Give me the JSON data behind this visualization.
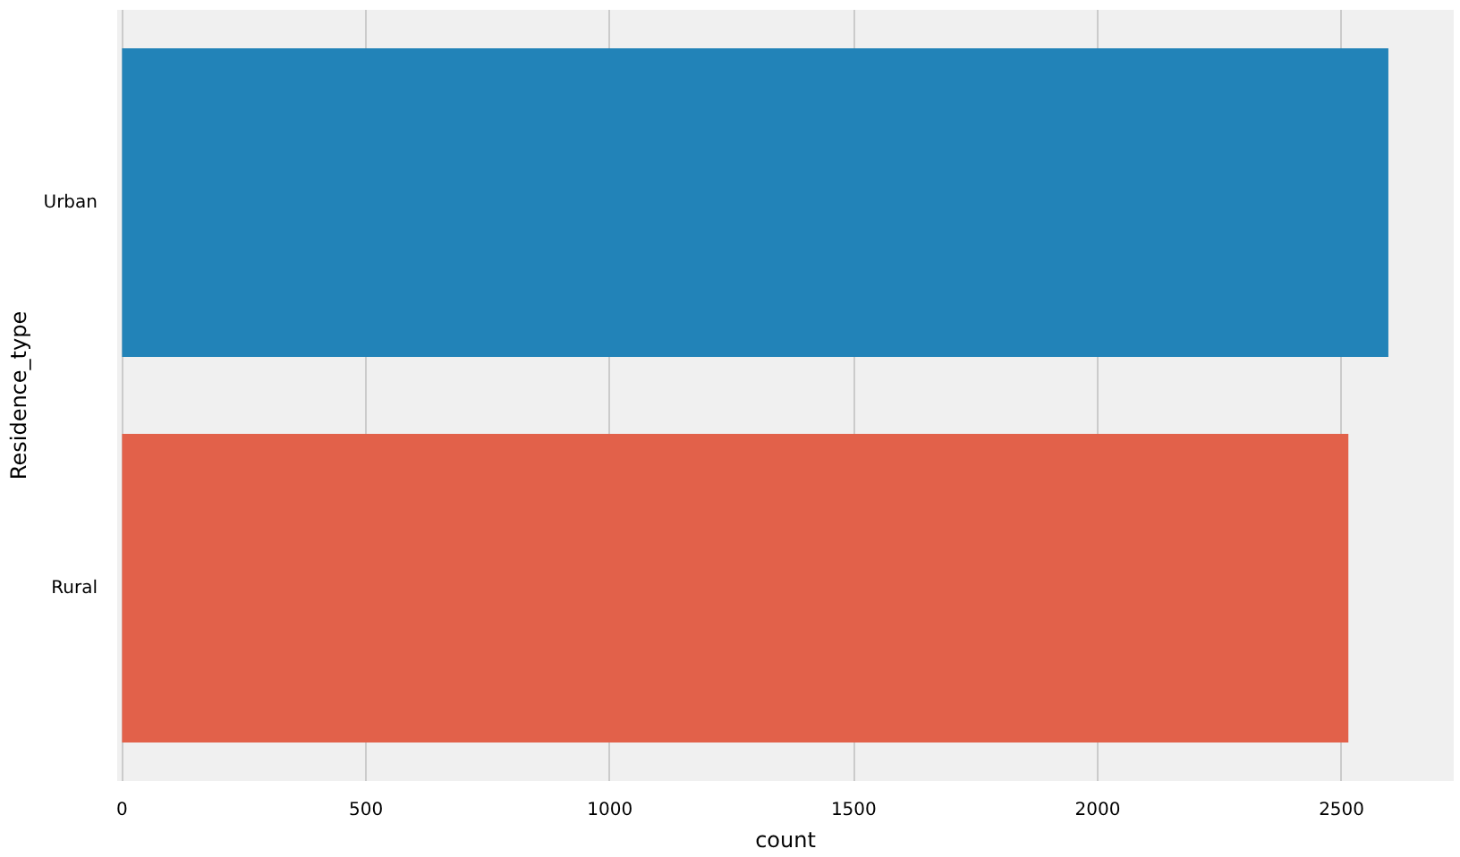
{
  "chart_data": {
    "type": "bar",
    "orientation": "horizontal",
    "categories": [
      "Urban",
      "Rural"
    ],
    "values": [
      2596,
      2514
    ],
    "colors": [
      "#2283b8",
      "#e2614a"
    ],
    "xlabel": "count",
    "ylabel": "Residence_type",
    "xlim": [
      -10,
      2730
    ],
    "xticks": [
      0,
      500,
      1000,
      1500,
      2000,
      2500
    ],
    "grid": "x"
  }
}
